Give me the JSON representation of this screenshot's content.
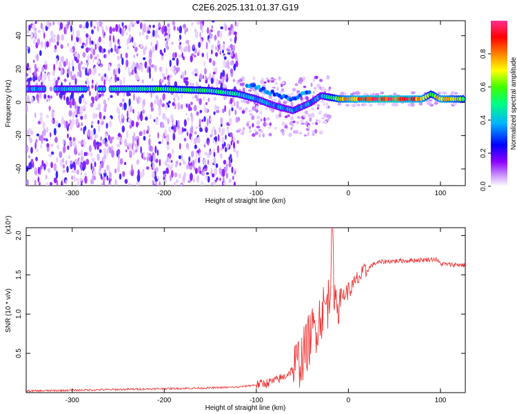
{
  "title": "C2E6.2025.131.01.37.G19",
  "chart_data": [
    {
      "type": "heatmap",
      "xlabel": "Height of straight line (km)",
      "ylabel": "Frequency (Hz)",
      "xlim": [
        -350,
        127
      ],
      "ylim": [
        -50,
        49
      ],
      "xticks": [
        -300,
        -200,
        -100,
        0,
        100
      ],
      "yticks": [
        -40,
        -20,
        0,
        20,
        40
      ],
      "colorbar": {
        "label": "Normalized spectral amplitude",
        "range": [
          0.0,
          1.0
        ],
        "ticks": [
          0.0,
          0.2,
          0.4,
          0.6,
          0.8
        ],
        "colors": [
          "#ffffff",
          "#a000ff",
          "#0000ff",
          "#00c8ff",
          "#00ff40",
          "#ffff00",
          "#ff8000",
          "#ff0000",
          "#ff2090"
        ]
      },
      "ridge": {
        "x": [
          -350,
          -300,
          -250,
          -200,
          -150,
          -120,
          -100,
          -80,
          -60,
          -40,
          -30,
          -20,
          -10,
          0,
          20,
          40,
          60,
          80,
          90,
          100,
          110,
          127
        ],
        "frequency": [
          8,
          8,
          8,
          8,
          7,
          5,
          2,
          -2,
          -5,
          0,
          4,
          3,
          2,
          2,
          2,
          2,
          2,
          2,
          5,
          2,
          2,
          2
        ],
        "amplitude": [
          0.35,
          0.4,
          0.45,
          0.55,
          0.5,
          0.45,
          0.4,
          0.35,
          0.35,
          0.35,
          0.35,
          0.5,
          0.7,
          0.8,
          0.9,
          0.95,
          0.9,
          0.8,
          0.55,
          0.8,
          0.75,
          0.6
        ]
      }
    },
    {
      "type": "line",
      "xlabel": "Height of straight line (km)",
      "ylabel": "SNR (10 * v/v)",
      "y_multiplier": "(x10⁴)",
      "xlim": [
        -350,
        127
      ],
      "ylim": [
        0,
        2.1
      ],
      "xticks": [
        -300,
        -200,
        -100,
        0,
        100
      ],
      "yticks": [
        0.5,
        1.0,
        1.5,
        2.0
      ],
      "series": [
        {
          "color": "#ee3333",
          "x": [
            -350,
            -300,
            -250,
            -200,
            -150,
            -120,
            -100,
            -90,
            -80,
            -70,
            -60,
            -50,
            -45,
            -40,
            -35,
            -30,
            -25,
            -20,
            -18,
            -15,
            -10,
            -5,
            0,
            5,
            10,
            15,
            20,
            25,
            30,
            40,
            60,
            80,
            95,
            100,
            110,
            120,
            127
          ],
          "y": [
            0.02,
            0.03,
            0.04,
            0.05,
            0.06,
            0.07,
            0.1,
            0.12,
            0.15,
            0.2,
            0.3,
            0.45,
            0.6,
            0.75,
            0.85,
            1.0,
            1.1,
            1.2,
            2.1,
            1.2,
            1.2,
            1.25,
            1.3,
            1.35,
            1.45,
            1.5,
            1.55,
            1.62,
            1.65,
            1.67,
            1.68,
            1.69,
            1.7,
            1.64,
            1.63,
            1.63,
            1.62
          ]
        }
      ]
    }
  ]
}
